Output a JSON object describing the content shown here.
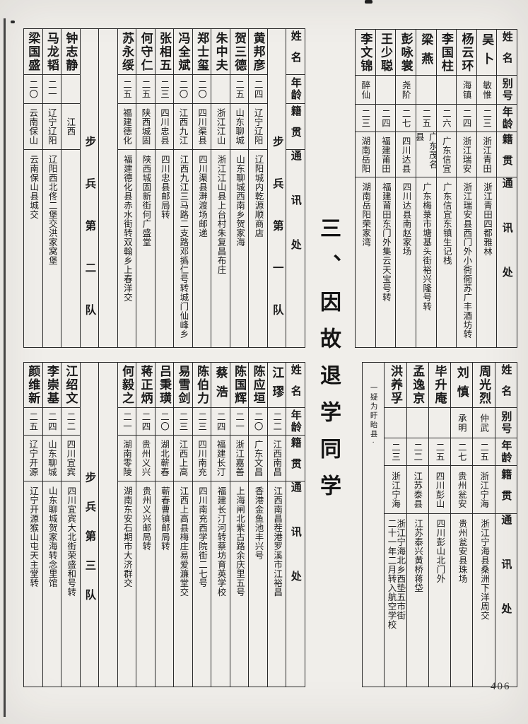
{
  "section_title": "三、因故退学同学",
  "page_number": "406",
  "tables": {
    "top_right": {
      "headers": {
        "name": "姓名",
        "alias": "别号",
        "age": "年龄",
        "origin": "籍贯",
        "address": "通讯处"
      },
      "columns": [
        {
          "type": "person",
          "name": "吴卜",
          "alias": "敏惟",
          "age": "二三",
          "origin": "浙江青田",
          "address": "浙江青田四都雅林"
        },
        {
          "type": "person",
          "name": "杨云环",
          "alias": "海镇",
          "age": "二四",
          "origin": "浙江瑞安",
          "address": "浙江瑞安县西门外小衖衕苏广丰酒坊转"
        },
        {
          "type": "person",
          "name": "李国柱",
          "alias": "",
          "age": "二六",
          "origin": "广东信宜",
          "address": "广东信宜东镇生记栈"
        },
        {
          "type": "person",
          "name": "梁燕",
          "alias": "",
          "age": "二五",
          "origin": "广东茂名县",
          "address": "广东梅菉市塘基头街裕兴隆号转"
        },
        {
          "type": "person",
          "name": "彭咏裳",
          "alias": "尧阶",
          "age": "二七",
          "origin": "四川达县",
          "address": "四川达县南赵家场"
        },
        {
          "type": "person",
          "name": "王少聪",
          "alias": "",
          "age": "二四",
          "origin": "福建莆田",
          "address": "福建莆田东门外集云天宝号转"
        },
        {
          "type": "person",
          "name": "李文锦",
          "alias": "醉仙",
          "age": "二三",
          "origin": "湖南岳阳",
          "address": "湖南岳阳荣家湾"
        }
      ]
    },
    "top_left": {
      "headers": {
        "name": "姓名",
        "age": "年龄",
        "origin": "籍贯",
        "address": "通讯处"
      },
      "columns": [
        {
          "type": "squad",
          "label": "步兵第一队"
        },
        {
          "type": "person",
          "name": "黄邦彦",
          "age": "二四",
          "origin": "辽宁辽阳",
          "address": "辽阳城内乾源顺商店"
        },
        {
          "type": "person",
          "name": "贺三德",
          "age": "二五",
          "origin": "山东聊城",
          "address": "山东聊城西南乡贺家海"
        },
        {
          "type": "person",
          "name": "朱中夫",
          "age": "",
          "origin": "浙江江山",
          "address": "浙江江山县上台村朱复昌布庄"
        },
        {
          "type": "person",
          "name": "郑士玺",
          "age": "二〇",
          "origin": "四川渠县",
          "address": "四川渠县溿渡场邮递"
        },
        {
          "type": "person",
          "name": "冯全斌",
          "age": "二〇",
          "origin": "江西九江",
          "address": "江西九江三马路二支路邓撝仁号转城门仙峰乡"
        },
        {
          "type": "person",
          "name": "张相五",
          "age": "二三",
          "origin": "四川忠县",
          "address": "四川忠县邮局转"
        },
        {
          "type": "person",
          "name": "何守仁",
          "age": "二五",
          "origin": "陕西城固",
          "address": "陕西城固新街何广盛堂"
        },
        {
          "type": "person",
          "name": "苏永绥",
          "age": "二五",
          "origin": "福建德化",
          "address": "福建德化县赤水街转双翰乡上春洋交"
        },
        {
          "type": "blank"
        },
        {
          "type": "squad",
          "label": "步兵第二队"
        },
        {
          "type": "person",
          "name": "钟志静",
          "age": "",
          "origin": "江西",
          "address": ""
        },
        {
          "type": "person",
          "name": "马龙韬",
          "age": "二一",
          "origin": "辽宁辽阳",
          "address": "辽阳西北佟二堡交洪家窝堡"
        },
        {
          "type": "person",
          "name": "梁国盛",
          "age": "二〇",
          "origin": "云南保山",
          "address": "云南保山县城交"
        }
      ]
    },
    "bottom_right": {
      "headers": {
        "name": "姓名",
        "alias": "别号",
        "age": "年龄",
        "origin": "籍贯",
        "address": "通讯处"
      },
      "columns": [
        {
          "type": "person",
          "name": "周光烈",
          "alias": "仲武",
          "age": "二五",
          "origin": "浙江宁海",
          "address": "浙江宁海县桑洲下洋周交"
        },
        {
          "type": "person",
          "name": "刘慎",
          "alias": "承明",
          "age": "二七",
          "origin": "贵州瓮安",
          "address": "贵州瓮安县珠场"
        },
        {
          "type": "person",
          "name": "毕升庵",
          "alias": "",
          "age": "二五",
          "origin": "四川彭山",
          "address": "四川彭山北门外"
        },
        {
          "type": "person",
          "name": "孟逸京",
          "alias": "",
          "age": "二二",
          "origin": "江苏泰县",
          "address": "江苏泰兴黄桥蒋垈"
        },
        {
          "type": "person",
          "name": "洪养孚",
          "alias": "",
          "age": "二三",
          "origin": "浙江宁海",
          "address": "浙江宁海北乡西垫五市街\n二十一年二月转入航空学校"
        },
        {
          "type": "note",
          "label": "一疑为盱眙县·"
        }
      ]
    },
    "bottom_left": {
      "headers": {
        "name": "姓名",
        "age": "年龄",
        "origin": "籍贯",
        "address": "通讯处"
      },
      "columns": [
        {
          "type": "person",
          "name": "江璆",
          "age": "二二",
          "origin": "江西南昌",
          "address": "江西南昌茬港罗溪市江裕昌"
        },
        {
          "type": "person",
          "name": "陈应垣",
          "age": "二〇",
          "origin": "广东文昌",
          "address": "香港金鱼池丰兴号"
        },
        {
          "type": "person",
          "name": "陈国辉",
          "age": "二一",
          "origin": "浙江嘉善",
          "address": "上海闸北紫古路余庆里五号"
        },
        {
          "type": "person",
          "name": "蔡浩",
          "age": "二四",
          "origin": "福建长汀",
          "address": "福建长汀河转蔡坊育英学校"
        },
        {
          "type": "person",
          "name": "陈伯力",
          "age": "二三",
          "origin": "四川南充",
          "address": "四川南充西学院街二七号"
        },
        {
          "type": "person",
          "name": "易雪剑",
          "age": "二三",
          "origin": "江西上高",
          "address": "江西上高县梅庄易爱濂堂交"
        },
        {
          "type": "person",
          "name": "吕秉璜",
          "age": "二〇",
          "origin": "湖北蕲春",
          "address": "蕲春曹镇邮局转"
        },
        {
          "type": "person",
          "name": "蒋正炳",
          "age": "二四",
          "origin": "贵州义兴",
          "address": "贵州义兴邮局转"
        },
        {
          "type": "person",
          "name": "何毅之",
          "age": "二一",
          "origin": "湖南零陵",
          "address": "湖南东安石期市大济群交"
        },
        {
          "type": "blank"
        },
        {
          "type": "squad",
          "label": "步兵第三队"
        },
        {
          "type": "person",
          "name": "江绍文",
          "age": "二二",
          "origin": "四川宜宾",
          "address": "四川宜宾大北街荣盛和号转"
        },
        {
          "type": "person",
          "name": "李崇基",
          "age": "二四",
          "origin": "山东聊城",
          "address": "山东聊城贺家海转念里馆"
        },
        {
          "type": "person",
          "name": "颜维新",
          "age": "二五",
          "origin": "辽宁开源",
          "address": "辽宁开源猴山屯天主堂转"
        }
      ]
    }
  }
}
